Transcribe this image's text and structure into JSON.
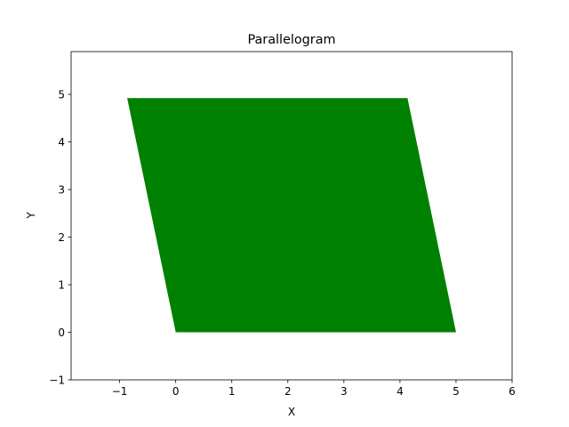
{
  "chart_data": {
    "type": "area",
    "title": "Parallelogram",
    "xlabel": "X",
    "ylabel": "Y",
    "xlim": [
      -1.866,
      6
    ],
    "ylim": [
      -1,
      5.9
    ],
    "xticks": [
      -1,
      0,
      1,
      2,
      3,
      4,
      5,
      6
    ],
    "xtick_labels": [
      "−1",
      "0",
      "1",
      "2",
      "3",
      "4",
      "5",
      "6"
    ],
    "yticks": [
      -1,
      0,
      1,
      2,
      3,
      4,
      5
    ],
    "ytick_labels": [
      "−1",
      "0",
      "1",
      "2",
      "3",
      "4",
      "5"
    ],
    "grid": false,
    "series": [
      {
        "vertices": [
          {
            "x": 0,
            "y": 0
          },
          {
            "x": 5,
            "y": 0
          },
          {
            "x": 4.134,
            "y": 4.924
          },
          {
            "x": -0.866,
            "y": 4.924
          }
        ],
        "color": "#008000"
      }
    ]
  }
}
